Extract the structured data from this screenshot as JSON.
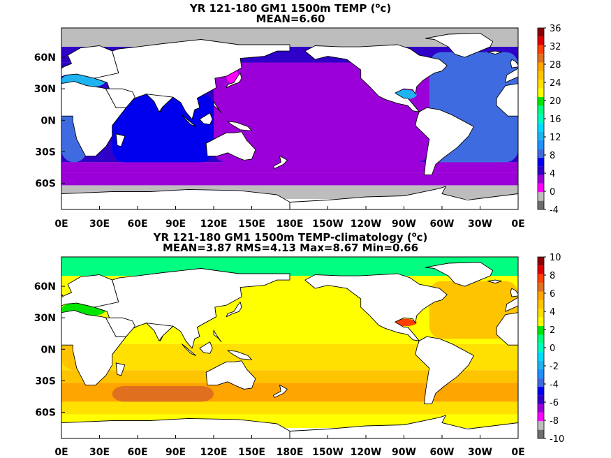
{
  "colors": {
    "land": "#ffffff",
    "coast": "#000000"
  },
  "chart_data": [
    {
      "type": "heatmap",
      "title": "YR 121-180 GM1 1500m TEMP",
      "unit_label": "o",
      "unit_suffix": "c",
      "title_end": ")",
      "subtitle": "MEAN=6.60",
      "x_ticks": [
        "0E",
        "30E",
        "60E",
        "90E",
        "120E",
        "150E",
        "180E",
        "150W",
        "120W",
        "90W",
        "60W",
        "30W",
        "0E"
      ],
      "y_ticks": [
        {
          "label": "60N",
          "lat": 60
        },
        {
          "label": "30N",
          "lat": 30
        },
        {
          "label": "0N",
          "lat": 0
        },
        {
          "label": "30S",
          "lat": -30
        },
        {
          "label": "60S",
          "lat": -60
        }
      ],
      "xlim": [
        0,
        360
      ],
      "ylim": [
        -85,
        88
      ],
      "colorbar": {
        "levels": [
          -4,
          -2,
          0,
          2,
          4,
          6,
          8,
          10,
          12,
          14,
          16,
          18,
          20,
          22,
          24,
          26,
          28,
          30,
          32,
          34,
          36
        ],
        "tick_labels": [
          -4,
          0,
          4,
          8,
          12,
          16,
          20,
          24,
          28,
          32,
          36
        ],
        "colors": [
          "#6e6e6e",
          "#bdbdbd",
          "#ff00ff",
          "#9b00d8",
          "#2f00c8",
          "#0000ee",
          "#3e6ce0",
          "#1e90ff",
          "#1eb4f2",
          "#00dcff",
          "#00fac0",
          "#00ff80",
          "#00e600",
          "#ffff00",
          "#ffe000",
          "#ffc400",
          "#ffa500",
          "#e07020",
          "#ff4000",
          "#dd0000",
          "#8b0000"
        ]
      },
      "ocean_bands": [
        {
          "lat_min": 70,
          "lat_max": 88,
          "value": -1
        },
        {
          "lat_min": 55,
          "lat_max": 70,
          "value": 5
        },
        {
          "lat_min": -40,
          "lat_max": 55,
          "value": 5
        },
        {
          "lat_min": -50,
          "lat_max": -40,
          "value": 3
        },
        {
          "lat_min": -62,
          "lat_max": -50,
          "value": 2
        },
        {
          "lat_min": -75,
          "lat_max": -62,
          "value": -1
        }
      ],
      "ocean_regions": [
        {
          "region": "pacific",
          "lon_min": 120,
          "lon_max": 290,
          "lat_min": -40,
          "lat_max": 55,
          "value": 3
        },
        {
          "region": "indian",
          "lon_min": 40,
          "lon_max": 120,
          "lat_min": -40,
          "lat_max": 25,
          "value": 6
        },
        {
          "region": "atlantic",
          "lon_min": 290,
          "lon_max": 360,
          "lat_min": -40,
          "lat_max": 65,
          "value": 8
        },
        {
          "region": "atlantic-east",
          "lon_min": 0,
          "lon_max": 20,
          "lat_min": -40,
          "lat_max": 40,
          "value": 8
        },
        {
          "region": "mediterranean",
          "lon_min": 0,
          "lon_max": 35,
          "lat_min": 32,
          "lat_max": 44,
          "value": 13
        },
        {
          "region": "gulf-of-mexico",
          "lon_min": 262,
          "lon_max": 280,
          "lat_min": 20,
          "lat_max": 29,
          "value": 13
        },
        {
          "region": "japan-sea",
          "lon_min": 130,
          "lon_max": 140,
          "lat_min": 35,
          "lat_max": 48,
          "value": 0
        }
      ]
    },
    {
      "type": "heatmap",
      "title": "YR 121-180 GM1 1500m TEMP-climatology",
      "unit_label": "o",
      "unit_suffix": "c",
      "title_end": ")",
      "subtitle": "MEAN=3.87   RMS=4.13   Max=8.67   Min=0.66",
      "x_ticks": [
        "0E",
        "30E",
        "60E",
        "90E",
        "120E",
        "150E",
        "180E",
        "150W",
        "120W",
        "90W",
        "60W",
        "30W",
        "0E"
      ],
      "y_ticks": [
        {
          "label": "60N",
          "lat": 60
        },
        {
          "label": "30N",
          "lat": 30
        },
        {
          "label": "0N",
          "lat": 0
        },
        {
          "label": "30S",
          "lat": -30
        },
        {
          "label": "60S",
          "lat": -60
        }
      ],
      "xlim": [
        0,
        360
      ],
      "ylim": [
        -85,
        88
      ],
      "colorbar": {
        "levels": [
          -10,
          -9,
          -8,
          -7,
          -6,
          -5,
          -4,
          -3,
          -2,
          -1,
          0,
          1,
          2,
          3,
          4,
          5,
          6,
          7,
          8,
          9,
          10
        ],
        "tick_labels": [
          -10,
          -8,
          -6,
          -4,
          -2,
          0,
          2,
          4,
          6,
          8,
          10
        ],
        "colors": [
          "#6e6e6e",
          "#bdbdbd",
          "#ff00ff",
          "#9b00d8",
          "#2f00c8",
          "#0000ee",
          "#3e6ce0",
          "#1e90ff",
          "#1eb4f2",
          "#00dcff",
          "#00fac0",
          "#00ff80",
          "#00e600",
          "#ffff00",
          "#ffe000",
          "#ffc400",
          "#ffa500",
          "#e07020",
          "#ff4000",
          "#dd0000",
          "#8b0000"
        ]
      },
      "ocean_bands": [
        {
          "lat_min": 70,
          "lat_max": 88,
          "value": 1.5
        },
        {
          "lat_min": 40,
          "lat_max": 70,
          "value": 3.5
        },
        {
          "lat_min": 5,
          "lat_max": 40,
          "value": 3.5
        },
        {
          "lat_min": -20,
          "lat_max": 5,
          "value": 4.5
        },
        {
          "lat_min": -32,
          "lat_max": -20,
          "value": 5.5
        },
        {
          "lat_min": -50,
          "lat_max": -32,
          "value": 6.5
        },
        {
          "lat_min": -62,
          "lat_max": -50,
          "value": 4.5
        },
        {
          "lat_min": -75,
          "lat_max": -62,
          "value": 3.5
        }
      ],
      "ocean_regions": [
        {
          "region": "atlantic-north",
          "lon_min": 290,
          "lon_max": 360,
          "lat_min": 10,
          "lat_max": 65,
          "value": 5.5
        },
        {
          "region": "atlantic-east",
          "lon_min": 0,
          "lon_max": 20,
          "lat_min": -20,
          "lat_max": 45,
          "value": 5.5
        },
        {
          "region": "indian-south",
          "lon_min": 40,
          "lon_max": 120,
          "lat_min": -50,
          "lat_max": -35,
          "value": 7.5
        },
        {
          "region": "gulf-of-mexico",
          "lon_min": 262,
          "lon_max": 280,
          "lat_min": 22,
          "lat_max": 29,
          "value": 8.5
        },
        {
          "region": "mediterranean",
          "lon_min": 0,
          "lon_max": 35,
          "lat_min": 32,
          "lat_max": 44,
          "value": 2.5
        },
        {
          "region": "pacific-north",
          "lon_min": 140,
          "lon_max": 240,
          "lat_min": 20,
          "lat_max": 60,
          "value": 3.5
        }
      ]
    }
  ]
}
